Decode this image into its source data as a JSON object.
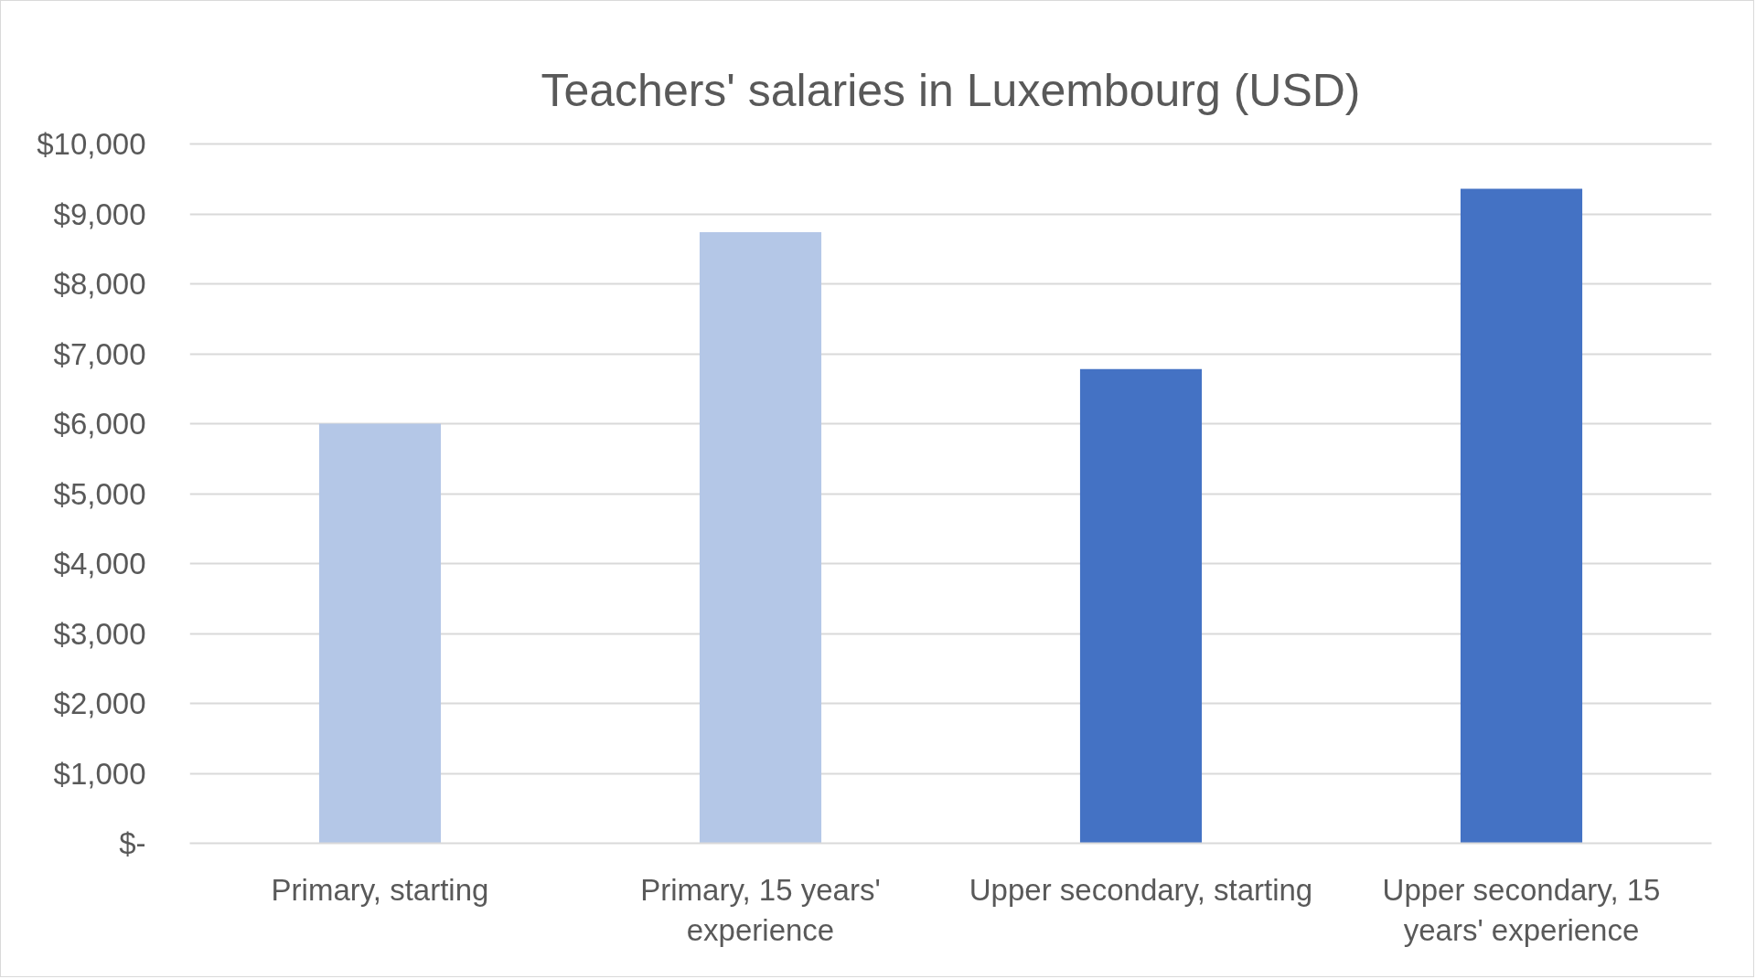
{
  "chart_data": {
    "type": "bar",
    "title": "Teachers' salaries in Luxembourg (USD)",
    "categories": [
      "Primary, starting",
      "Primary, 15 years' experience",
      "Upper secondary, starting",
      "Upper secondary, 15 years' experience"
    ],
    "values": [
      6000,
      8740,
      6780,
      9360
    ],
    "colors": [
      "#b4c7e7",
      "#b4c7e7",
      "#4472c4",
      "#4472c4"
    ],
    "ylim": [
      0,
      10000
    ],
    "yticks": [
      {
        "value": 0,
        "label": "$-"
      },
      {
        "value": 1000,
        "label": "$1,000"
      },
      {
        "value": 2000,
        "label": "$2,000"
      },
      {
        "value": 3000,
        "label": "$3,000"
      },
      {
        "value": 4000,
        "label": "$4,000"
      },
      {
        "value": 5000,
        "label": "$5,000"
      },
      {
        "value": 6000,
        "label": "$6,000"
      },
      {
        "value": 7000,
        "label": "$7,000"
      },
      {
        "value": 8000,
        "label": "$8,000"
      },
      {
        "value": 9000,
        "label": "$9,000"
      },
      {
        "value": 10000,
        "label": "$10,000"
      }
    ],
    "grid": "y"
  }
}
